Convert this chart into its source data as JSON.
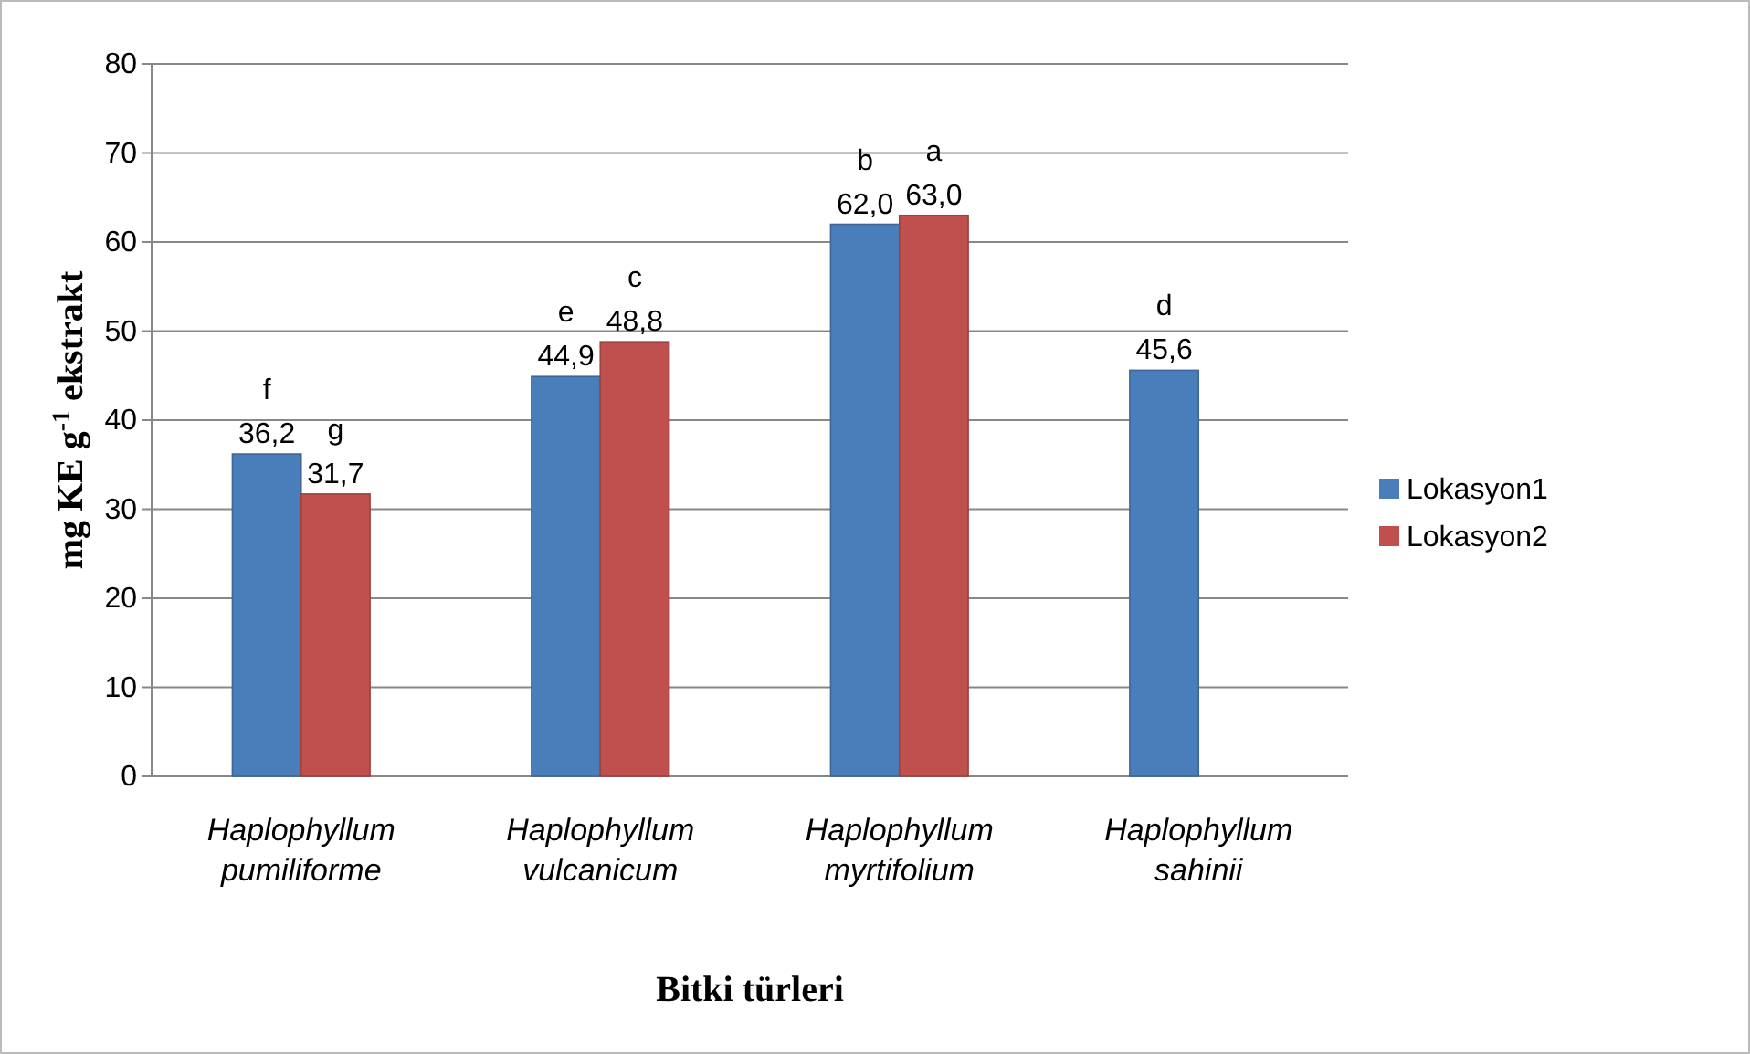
{
  "chart_data": {
    "type": "bar",
    "categories": [
      "Haplophyllum pumiliforme",
      "Haplophyllum vulcanicum",
      "Haplophyllum myrtifolium",
      "Haplophyllum sahinii"
    ],
    "series": [
      {
        "name": "Lokasyon1",
        "color": "#4a7ebb",
        "values": [
          36.2,
          44.9,
          62.0,
          45.6
        ],
        "value_labels": [
          "36,2",
          "44,9",
          "62,0",
          "45,6"
        ]
      },
      {
        "name": "Lokasyon2",
        "color": "#c0504d",
        "values": [
          31.7,
          48.8,
          63.0,
          null
        ],
        "value_labels": [
          "31,7",
          "48,8",
          "63,0",
          null
        ]
      }
    ],
    "xlabel": "Bitki türleri",
    "ylabel": "mg KE g$^{-1}$ ekstrakt",
    "ylim": [
      0,
      80
    ],
    "yticks": [
      0,
      10,
      20,
      30,
      40,
      50,
      60,
      70,
      80
    ],
    "grid": "y",
    "legend": "right",
    "annotations": [
      {
        "text": "f",
        "x": "Haplophyllum pumiliforme",
        "y": 36.2
      },
      {
        "text": "g",
        "x": "Haplophyllum pumiliforme",
        "y": 31.7
      },
      {
        "text": "e",
        "x": "Haplophyllum vulcanicum",
        "y": 44.9
      },
      {
        "text": "c",
        "x": "Haplophyllum vulcanicum",
        "y": 48.8
      },
      {
        "text": "b",
        "x": "Haplophyllum myrtifolium",
        "y": 62.0
      },
      {
        "text": "a",
        "x": "Haplophyllum myrtifolium",
        "y": 63.0
      },
      {
        "text": "d",
        "x": "Haplophyllum sahinii",
        "y": 45.6
      }
    ]
  }
}
